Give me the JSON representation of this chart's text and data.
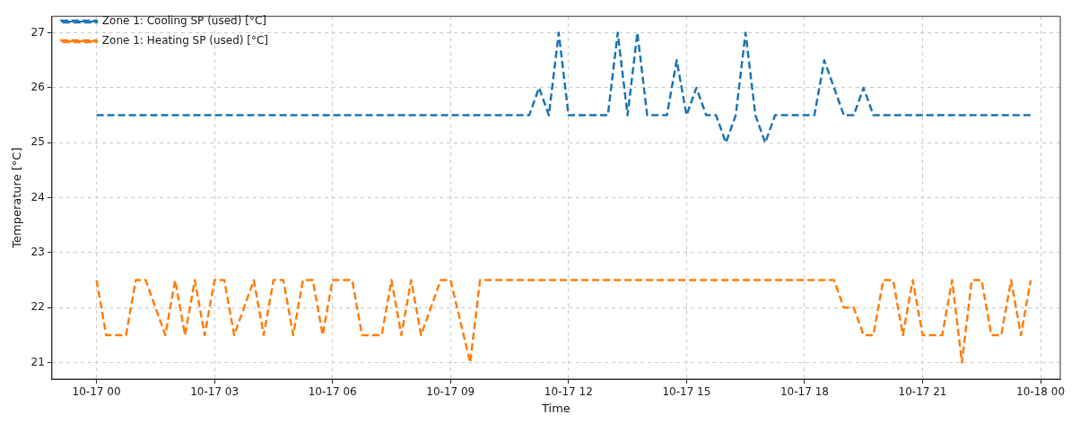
{
  "chart_data": {
    "type": "line",
    "xlabel": "Time",
    "ylabel": "Temperature [°C]",
    "xlim": [
      "--10-16T22:52",
      "--10-18T00:30"
    ],
    "ylim": [
      20.7,
      27.3
    ],
    "xticks": [
      {
        "value": "--10-17T00:00",
        "label": "10-17 00"
      },
      {
        "value": "--10-17T03:00",
        "label": "10-17 03"
      },
      {
        "value": "--10-17T06:00",
        "label": "10-17 06"
      },
      {
        "value": "--10-17T09:00",
        "label": "10-17 09"
      },
      {
        "value": "--10-17T12:00",
        "label": "10-17 12"
      },
      {
        "value": "--10-17T15:00",
        "label": "10-17 15"
      },
      {
        "value": "--10-17T18:00",
        "label": "10-17 18"
      },
      {
        "value": "--10-17T21:00",
        "label": "10-17 21"
      },
      {
        "value": "--10-18T00:00",
        "label": "10-18 00"
      }
    ],
    "yticks": [
      21,
      22,
      23,
      24,
      25,
      26,
      27
    ],
    "grid": true,
    "legend": "top left",
    "line_style": "dashed",
    "marker": "none",
    "series": [
      {
        "name": "Zone 1: Cooling SP (used) [°C]",
        "color": "#1f77b4",
        "x": [
          "--10-17T00:00",
          "--10-17T11:00",
          "--10-17T11:15",
          "--10-17T11:30",
          "--10-17T11:45",
          "--10-17T12:00",
          "--10-17T13:00",
          "--10-17T13:15",
          "--10-17T13:30",
          "--10-17T13:45",
          "--10-17T14:00",
          "--10-17T14:30",
          "--10-17T14:45",
          "--10-17T15:00",
          "--10-17T15:15",
          "--10-17T15:30",
          "--10-17T15:45",
          "--10-17T16:00",
          "--10-17T16:15",
          "--10-17T16:30",
          "--10-17T16:45",
          "--10-17T17:00",
          "--10-17T17:15",
          "--10-17T18:15",
          "--10-17T18:30",
          "--10-17T19:00",
          "--10-17T19:15",
          "--10-17T19:30",
          "--10-17T19:45",
          "--10-17T23:45"
        ],
        "values": [
          25.5,
          25.5,
          26,
          25.5,
          27,
          25.5,
          25.5,
          27,
          25.5,
          27,
          25.5,
          25.5,
          26.5,
          25.5,
          26,
          25.5,
          25.5,
          25,
          25.5,
          27,
          25.5,
          25,
          25.5,
          25.5,
          26.5,
          25.5,
          25.5,
          26,
          25.5,
          25.5
        ]
      },
      {
        "name": "Zone 1: Heating SP (used) [°C]",
        "color": "#ff7f0e",
        "x": [
          "--10-17T00:00",
          "--10-17T00:15",
          "--10-17T00:45",
          "--10-17T01:00",
          "--10-17T01:15",
          "--10-17T01:45",
          "--10-17T02:00",
          "--10-17T02:15",
          "--10-17T02:30",
          "--10-17T02:45",
          "--10-17T03:00",
          "--10-17T03:15",
          "--10-17T03:30",
          "--10-17T04:00",
          "--10-17T04:15",
          "--10-17T04:30",
          "--10-17T04:45",
          "--10-17T05:00",
          "--10-17T05:15",
          "--10-17T05:30",
          "--10-17T05:45",
          "--10-17T06:00",
          "--10-17T06:30",
          "--10-17T06:45",
          "--10-17T07:15",
          "--10-17T07:30",
          "--10-17T07:45",
          "--10-17T08:00",
          "--10-17T08:15",
          "--10-17T08:45",
          "--10-17T09:00",
          "--10-17T09:30",
          "--10-17T09:45",
          "--10-17T18:45",
          "--10-17T19:00",
          "--10-17T19:15",
          "--10-17T19:30",
          "--10-17T19:45",
          "--10-17T20:00",
          "--10-17T20:15",
          "--10-17T20:30",
          "--10-17T20:45",
          "--10-17T21:00",
          "--10-17T21:30",
          "--10-17T21:45",
          "--10-17T22:00",
          "--10-17T22:15",
          "--10-17T22:30",
          "--10-17T22:45",
          "--10-17T23:00",
          "--10-17T23:15",
          "--10-17T23:30",
          "--10-17T23:45"
        ],
        "values": [
          22.5,
          21.5,
          21.5,
          22.5,
          22.5,
          21.5,
          22.5,
          21.5,
          22.5,
          21.5,
          22.5,
          22.5,
          21.5,
          22.5,
          21.5,
          22.5,
          22.5,
          21.5,
          22.5,
          22.5,
          21.5,
          22.5,
          22.5,
          21.5,
          21.5,
          22.5,
          21.5,
          22.5,
          21.5,
          22.5,
          22.5,
          21,
          22.5,
          22.5,
          22,
          22,
          21.5,
          21.5,
          22.5,
          22.5,
          21.5,
          22.5,
          21.5,
          21.5,
          22.5,
          21,
          22.5,
          22.5,
          21.5,
          21.5,
          22.5,
          21.5,
          22.5
        ]
      }
    ]
  }
}
